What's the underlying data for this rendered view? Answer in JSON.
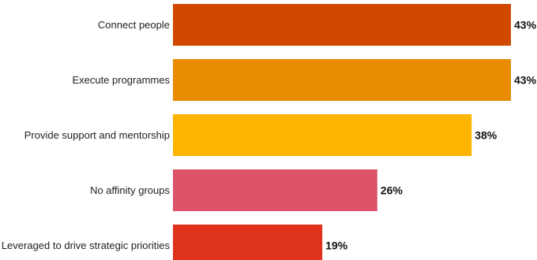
{
  "chart_data": {
    "type": "bar",
    "orientation": "horizontal",
    "title": "",
    "xlabel": "",
    "ylabel": "",
    "xlim": [
      0,
      43
    ],
    "grid": false,
    "legend": "none",
    "categories": [
      "Connect people",
      "Execute programmes",
      "Provide support and mentorship",
      "No affinity groups",
      "Leveraged to drive strategic priorities"
    ],
    "values": [
      43,
      43,
      38,
      26,
      19
    ],
    "value_labels": [
      "43%",
      "43%",
      "38%",
      "26%",
      "19%"
    ],
    "colors": [
      "#d14900",
      "#e98b00",
      "#fdb500",
      "#dc536a",
      "#e0331c"
    ]
  }
}
